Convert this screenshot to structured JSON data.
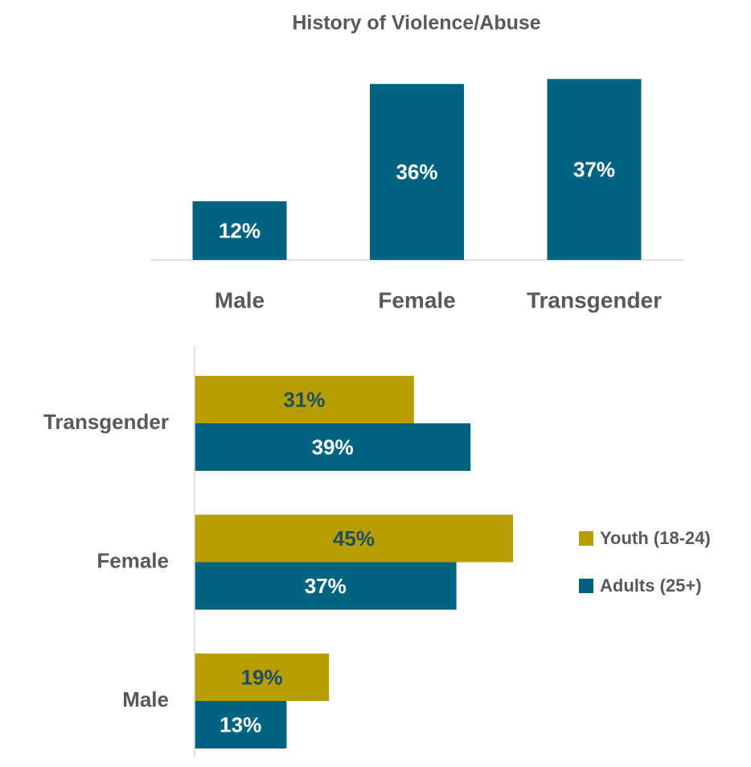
{
  "chart_data": [
    {
      "type": "bar",
      "title": "History of Violence/Abuse",
      "categories": [
        "Male",
        "Female",
        "Transgender"
      ],
      "values": [
        12,
        36,
        37
      ],
      "value_labels": [
        "12%",
        "36%",
        "37%"
      ],
      "color": "#00637f",
      "ylim": [
        0,
        40
      ]
    },
    {
      "type": "hbar",
      "categories": [
        "Transgender",
        "Female",
        "Male"
      ],
      "series": [
        {
          "name": "Youth (18-24)",
          "color": "#b89d00",
          "values": [
            31,
            45,
            19
          ],
          "value_labels": [
            "31%",
            "45%",
            "19%"
          ]
        },
        {
          "name": "Adults (25+)",
          "color": "#00637f",
          "values": [
            39,
            37,
            13
          ],
          "value_labels": [
            "39%",
            "37%",
            "13%"
          ]
        }
      ],
      "xlim": [
        0,
        50
      ],
      "legend": "right"
    }
  ]
}
